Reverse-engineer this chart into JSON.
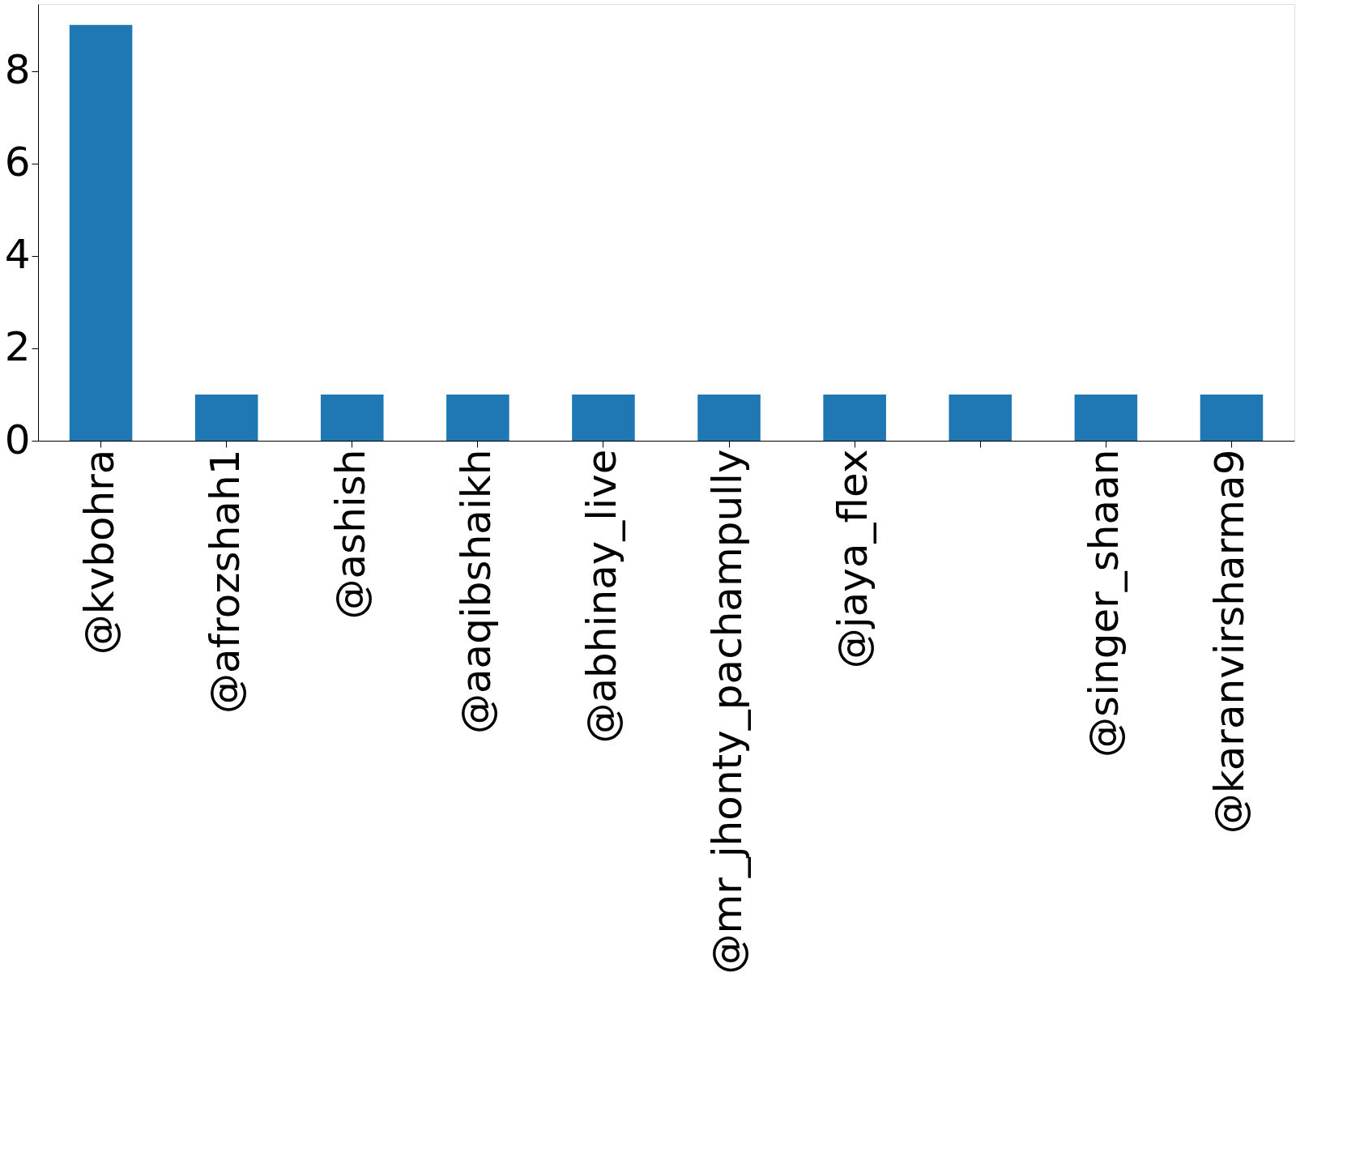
{
  "chart_data": {
    "type": "bar",
    "categories": [
      "@kvbohra",
      "@afrozshah1",
      "@ashish",
      "@aaqibshaikh",
      "@abhinay_live",
      "@mr_jhonty_pachampully",
      "@jaya_flex",
      null,
      "@singer_shaan",
      "@karanvirsharma9"
    ],
    "values": [
      9,
      1,
      1,
      1,
      1,
      1,
      1,
      1,
      1,
      1
    ],
    "color": "#1f77b4",
    "ylim": [
      0,
      9.45
    ],
    "yticks": [
      0,
      2,
      4,
      6,
      8
    ],
    "grid": false
  }
}
